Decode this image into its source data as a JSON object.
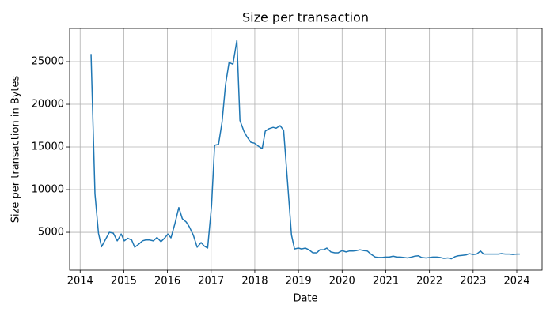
{
  "chart_data": {
    "type": "line",
    "title": "Size per transaction",
    "x_label": "Date",
    "y_label": "Size per transaction in Bytes",
    "color": "#1f77b4",
    "grid": true,
    "xlim": [
      2013.76,
      2024.58
    ],
    "xticks": [
      2014,
      2015,
      2016,
      2017,
      2018,
      2019,
      2020,
      2021,
      2022,
      2023,
      2024
    ],
    "ylim": [
      560,
      28890
    ],
    "yticks": [
      5000,
      10000,
      15000,
      20000,
      25000
    ],
    "x": [
      2014.25,
      2014.34,
      2014.42,
      2014.49,
      2014.67,
      2014.76,
      2014.85,
      2014.94,
      2015.01,
      2015.09,
      2015.18,
      2015.25,
      2015.34,
      2015.43,
      2015.5,
      2015.59,
      2015.68,
      2015.76,
      2015.85,
      2015.94,
      2016.01,
      2016.08,
      2016.17,
      2016.26,
      2016.34,
      2016.43,
      2016.5,
      2016.59,
      2016.68,
      2016.77,
      2016.84,
      2016.92,
      2017.01,
      2017.08,
      2017.17,
      2017.25,
      2017.33,
      2017.41,
      2017.5,
      2017.59,
      2017.66,
      2017.75,
      2017.82,
      2017.91,
      2017.99,
      2018.08,
      2018.17,
      2018.24,
      2018.33,
      2018.42,
      2018.49,
      2018.58,
      2018.66,
      2018.75,
      2018.84,
      2018.91,
      2019.0,
      2019.07,
      2019.16,
      2019.24,
      2019.33,
      2019.42,
      2019.49,
      2019.58,
      2019.65,
      2019.74,
      2019.83,
      2019.91,
      2020.0,
      2020.09,
      2020.16,
      2020.25,
      2020.32,
      2020.41,
      2020.5,
      2020.58,
      2020.67,
      2020.76,
      2020.83,
      2020.92,
      2020.99,
      2021.08,
      2021.17,
      2021.25,
      2021.33,
      2021.41,
      2021.5,
      2021.59,
      2021.66,
      2021.75,
      2021.82,
      2021.92,
      2022.01,
      2022.08,
      2022.17,
      2022.24,
      2022.33,
      2022.42,
      2022.5,
      2022.59,
      2022.66,
      2022.75,
      2022.84,
      2022.91,
      2023.0,
      2023.08,
      2023.17,
      2023.24,
      2023.33,
      2023.42,
      2023.49,
      2023.58,
      2023.65,
      2023.74,
      2023.83,
      2023.91,
      2024.0,
      2024.07
    ],
    "values": [
      25900,
      9500,
      4900,
      3300,
      5000,
      4900,
      4000,
      4800,
      4000,
      4300,
      4100,
      3250,
      3600,
      4000,
      4100,
      4100,
      4000,
      4400,
      3900,
      4350,
      4800,
      4350,
      6000,
      7900,
      6600,
      6200,
      5650,
      4700,
      3250,
      3800,
      3400,
      3150,
      8150,
      15200,
      15300,
      17900,
      22300,
      24900,
      24700,
      27500,
      18100,
      16850,
      16200,
      15550,
      15450,
      15100,
      14800,
      16850,
      17150,
      17300,
      17200,
      17500,
      16950,
      10900,
      4700,
      3050,
      3150,
      3050,
      3150,
      2950,
      2600,
      2600,
      2950,
      2950,
      3150,
      2700,
      2600,
      2600,
      2850,
      2700,
      2800,
      2800,
      2850,
      2950,
      2850,
      2800,
      2400,
      2100,
      2050,
      2050,
      2100,
      2100,
      2200,
      2100,
      2100,
      2050,
      2000,
      2100,
      2200,
      2250,
      2050,
      2000,
      2050,
      2100,
      2100,
      2050,
      1950,
      2000,
      1900,
      2150,
      2250,
      2300,
      2350,
      2500,
      2400,
      2450,
      2800,
      2450,
      2450,
      2450,
      2450,
      2450,
      2500,
      2450,
      2450,
      2400,
      2450,
      2450
    ]
  }
}
